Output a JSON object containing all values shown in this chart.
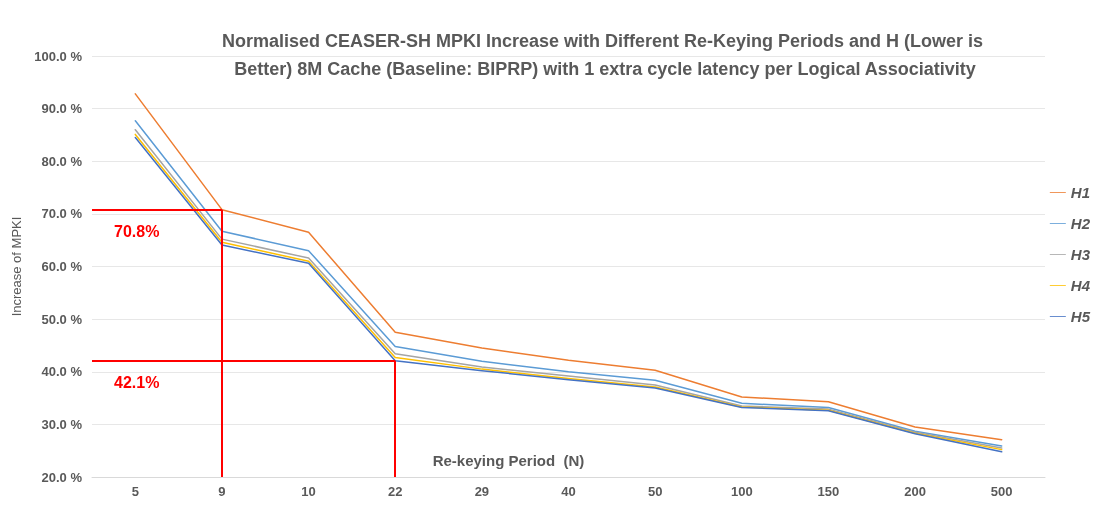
{
  "chart_data": {
    "type": "line",
    "title": "Normalised CEASER-SH MPKI Increase with Different Re-Keying Periods and H (Lower is Better) 8M Cache (Baseline: BIPRP) with 1 extra cycle latency per Logical Associativity",
    "xlabel": "Re-keying Period  (N)",
    "ylabel": "Increase of MPKI",
    "categories": [
      "5",
      "9",
      "10",
      "22",
      "29",
      "40",
      "50",
      "100",
      "150",
      "200",
      "500"
    ],
    "series": [
      {
        "name": "H1",
        "color": "#ed7d31",
        "values": [
          92.8,
          70.8,
          66.5,
          47.5,
          44.5,
          42.2,
          40.3,
          35.2,
          34.3,
          29.5,
          27.1
        ]
      },
      {
        "name": "H2",
        "color": "#5b9bd5",
        "values": [
          87.7,
          66.7,
          63.0,
          44.8,
          42.0,
          40.0,
          38.4,
          34.0,
          33.2,
          28.7,
          25.9
        ]
      },
      {
        "name": "H3",
        "color": "#a5a5a5",
        "values": [
          86.0,
          65.2,
          61.6,
          43.4,
          40.9,
          39.2,
          37.5,
          33.5,
          32.9,
          28.5,
          25.5
        ]
      },
      {
        "name": "H4",
        "color": "#ffc000",
        "values": [
          85.1,
          64.6,
          61.0,
          42.7,
          40.5,
          38.7,
          37.1,
          33.3,
          32.7,
          28.3,
          25.2
        ]
      },
      {
        "name": "H5",
        "color": "#4472c4",
        "values": [
          84.5,
          64.1,
          60.6,
          42.1,
          40.2,
          38.5,
          36.9,
          33.2,
          32.6,
          28.2,
          24.8
        ]
      }
    ],
    "ref_lines": [
      {
        "axis": "y",
        "value": 70.8,
        "label": "70.8%",
        "color": "#ff0000"
      },
      {
        "axis": "x",
        "value": "9",
        "color": "#ff0000"
      },
      {
        "axis": "y",
        "value": 42.1,
        "label": "42.1%",
        "color": "#ff0000"
      },
      {
        "axis": "x",
        "value": "22",
        "color": "#ff0000"
      }
    ],
    "ylim": [
      20,
      100
    ],
    "yticks": [
      {
        "value": 20,
        "label": "20.0 %"
      },
      {
        "value": 30,
        "label": "30.0 %"
      },
      {
        "value": 40,
        "label": "40.0 %"
      },
      {
        "value": 50,
        "label": "50.0 %"
      },
      {
        "value": 60,
        "label": "60.0 %"
      },
      {
        "value": 70,
        "label": "70.0 %"
      },
      {
        "value": 80,
        "label": "80.0 %"
      },
      {
        "value": 90,
        "label": "90.0 %"
      },
      {
        "value": 100,
        "label": "100.0 %"
      }
    ],
    "grid": "y",
    "legend": "right",
    "marker": "none",
    "line_style": "solid"
  }
}
